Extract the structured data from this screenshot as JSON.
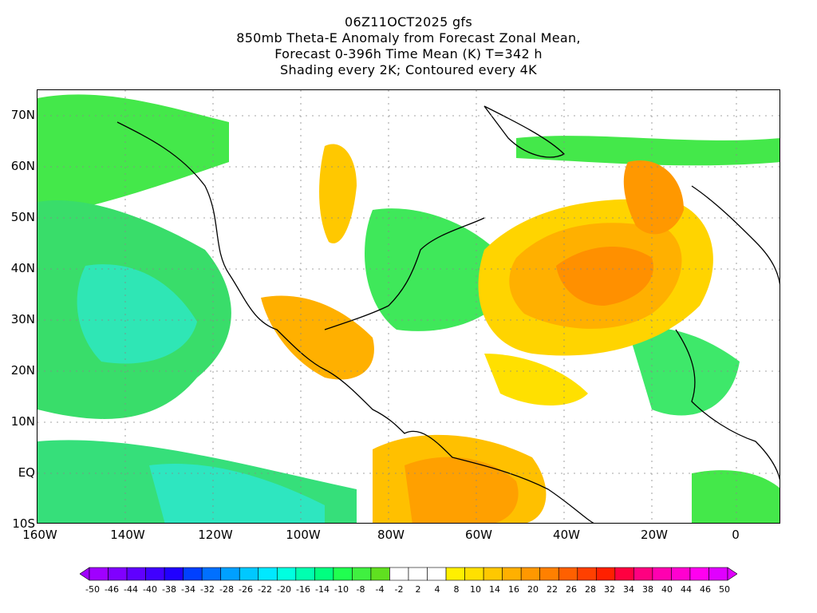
{
  "title": {
    "line1": "06Z11OCT2025 gfs",
    "line2": "850mb Theta-E Anomaly from Forecast Zonal Mean,",
    "line3": "Forecast 0-396h Time Mean (K) T=342 h",
    "line4": "Shading every 2K; Contoured every 4K"
  },
  "axes": {
    "y_ticks": [
      "70N",
      "60N",
      "50N",
      "40N",
      "30N",
      "20N",
      "10N",
      "EQ",
      "10S"
    ],
    "x_ticks": [
      "160W",
      "140W",
      "120W",
      "100W",
      "80W",
      "60W",
      "40W",
      "20W",
      "0"
    ]
  },
  "colorbar": {
    "labels": [
      "-50",
      "-46",
      "-44",
      "-40",
      "-38",
      "-34",
      "-32",
      "-28",
      "-26",
      "-22",
      "-20",
      "-16",
      "-14",
      "-10",
      "-8",
      "-4",
      "-2",
      "2",
      "4",
      "8",
      "10",
      "14",
      "16",
      "20",
      "22",
      "26",
      "28",
      "32",
      "34",
      "38",
      "40",
      "44",
      "46",
      "50"
    ],
    "colors": [
      "#a000ff",
      "#8000ff",
      "#6000ff",
      "#4000ff",
      "#2000ff",
      "#0040ff",
      "#0070ff",
      "#00a0ff",
      "#00c8ff",
      "#00e8ff",
      "#00ffe0",
      "#00ffb0",
      "#00ff80",
      "#20ff50",
      "#40f040",
      "#60e020",
      "#ffffff",
      "#ffffff",
      "#ffffff",
      "#fff000",
      "#ffe000",
      "#ffc800",
      "#ffb000",
      "#ff9800",
      "#ff8000",
      "#ff6000",
      "#ff4000",
      "#ff2000",
      "#ff0040",
      "#ff0080",
      "#ff00b0",
      "#ff00d0",
      "#ff00f0",
      "#e000ff"
    ]
  }
}
